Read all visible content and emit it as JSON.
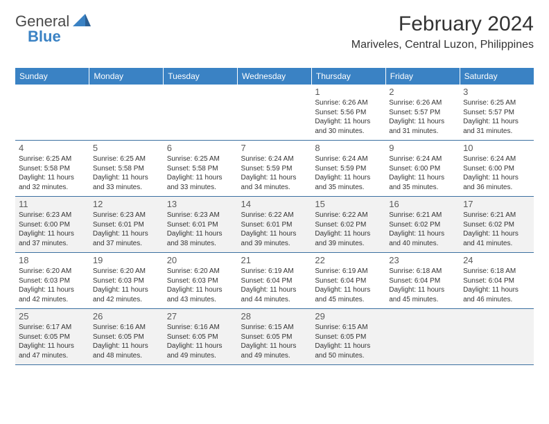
{
  "logo": {
    "word1": "General",
    "word2": "Blue"
  },
  "title": "February 2024",
  "location": "Mariveles, Central Luzon, Philippines",
  "colors": {
    "header_bg": "#3a82c4",
    "header_text": "#ffffff",
    "alt_row_bg": "#f2f2f2",
    "border": "#3a6fa0",
    "text": "#333333"
  },
  "days_of_week": [
    "Sunday",
    "Monday",
    "Tuesday",
    "Wednesday",
    "Thursday",
    "Friday",
    "Saturday"
  ],
  "weeks": [
    [
      null,
      null,
      null,
      null,
      {
        "n": "1",
        "sunrise": "6:26 AM",
        "sunset": "5:56 PM",
        "dl1": "Daylight: 11 hours",
        "dl2": "and 30 minutes."
      },
      {
        "n": "2",
        "sunrise": "6:26 AM",
        "sunset": "5:57 PM",
        "dl1": "Daylight: 11 hours",
        "dl2": "and 31 minutes."
      },
      {
        "n": "3",
        "sunrise": "6:25 AM",
        "sunset": "5:57 PM",
        "dl1": "Daylight: 11 hours",
        "dl2": "and 31 minutes."
      }
    ],
    [
      {
        "n": "4",
        "sunrise": "6:25 AM",
        "sunset": "5:58 PM",
        "dl1": "Daylight: 11 hours",
        "dl2": "and 32 minutes."
      },
      {
        "n": "5",
        "sunrise": "6:25 AM",
        "sunset": "5:58 PM",
        "dl1": "Daylight: 11 hours",
        "dl2": "and 33 minutes."
      },
      {
        "n": "6",
        "sunrise": "6:25 AM",
        "sunset": "5:58 PM",
        "dl1": "Daylight: 11 hours",
        "dl2": "and 33 minutes."
      },
      {
        "n": "7",
        "sunrise": "6:24 AM",
        "sunset": "5:59 PM",
        "dl1": "Daylight: 11 hours",
        "dl2": "and 34 minutes."
      },
      {
        "n": "8",
        "sunrise": "6:24 AM",
        "sunset": "5:59 PM",
        "dl1": "Daylight: 11 hours",
        "dl2": "and 35 minutes."
      },
      {
        "n": "9",
        "sunrise": "6:24 AM",
        "sunset": "6:00 PM",
        "dl1": "Daylight: 11 hours",
        "dl2": "and 35 minutes."
      },
      {
        "n": "10",
        "sunrise": "6:24 AM",
        "sunset": "6:00 PM",
        "dl1": "Daylight: 11 hours",
        "dl2": "and 36 minutes."
      }
    ],
    [
      {
        "n": "11",
        "sunrise": "6:23 AM",
        "sunset": "6:00 PM",
        "dl1": "Daylight: 11 hours",
        "dl2": "and 37 minutes."
      },
      {
        "n": "12",
        "sunrise": "6:23 AM",
        "sunset": "6:01 PM",
        "dl1": "Daylight: 11 hours",
        "dl2": "and 37 minutes."
      },
      {
        "n": "13",
        "sunrise": "6:23 AM",
        "sunset": "6:01 PM",
        "dl1": "Daylight: 11 hours",
        "dl2": "and 38 minutes."
      },
      {
        "n": "14",
        "sunrise": "6:22 AM",
        "sunset": "6:01 PM",
        "dl1": "Daylight: 11 hours",
        "dl2": "and 39 minutes."
      },
      {
        "n": "15",
        "sunrise": "6:22 AM",
        "sunset": "6:02 PM",
        "dl1": "Daylight: 11 hours",
        "dl2": "and 39 minutes."
      },
      {
        "n": "16",
        "sunrise": "6:21 AM",
        "sunset": "6:02 PM",
        "dl1": "Daylight: 11 hours",
        "dl2": "and 40 minutes."
      },
      {
        "n": "17",
        "sunrise": "6:21 AM",
        "sunset": "6:02 PM",
        "dl1": "Daylight: 11 hours",
        "dl2": "and 41 minutes."
      }
    ],
    [
      {
        "n": "18",
        "sunrise": "6:20 AM",
        "sunset": "6:03 PM",
        "dl1": "Daylight: 11 hours",
        "dl2": "and 42 minutes."
      },
      {
        "n": "19",
        "sunrise": "6:20 AM",
        "sunset": "6:03 PM",
        "dl1": "Daylight: 11 hours",
        "dl2": "and 42 minutes."
      },
      {
        "n": "20",
        "sunrise": "6:20 AM",
        "sunset": "6:03 PM",
        "dl1": "Daylight: 11 hours",
        "dl2": "and 43 minutes."
      },
      {
        "n": "21",
        "sunrise": "6:19 AM",
        "sunset": "6:04 PM",
        "dl1": "Daylight: 11 hours",
        "dl2": "and 44 minutes."
      },
      {
        "n": "22",
        "sunrise": "6:19 AM",
        "sunset": "6:04 PM",
        "dl1": "Daylight: 11 hours",
        "dl2": "and 45 minutes."
      },
      {
        "n": "23",
        "sunrise": "6:18 AM",
        "sunset": "6:04 PM",
        "dl1": "Daylight: 11 hours",
        "dl2": "and 45 minutes."
      },
      {
        "n": "24",
        "sunrise": "6:18 AM",
        "sunset": "6:04 PM",
        "dl1": "Daylight: 11 hours",
        "dl2": "and 46 minutes."
      }
    ],
    [
      {
        "n": "25",
        "sunrise": "6:17 AM",
        "sunset": "6:05 PM",
        "dl1": "Daylight: 11 hours",
        "dl2": "and 47 minutes."
      },
      {
        "n": "26",
        "sunrise": "6:16 AM",
        "sunset": "6:05 PM",
        "dl1": "Daylight: 11 hours",
        "dl2": "and 48 minutes."
      },
      {
        "n": "27",
        "sunrise": "6:16 AM",
        "sunset": "6:05 PM",
        "dl1": "Daylight: 11 hours",
        "dl2": "and 49 minutes."
      },
      {
        "n": "28",
        "sunrise": "6:15 AM",
        "sunset": "6:05 PM",
        "dl1": "Daylight: 11 hours",
        "dl2": "and 49 minutes."
      },
      {
        "n": "29",
        "sunrise": "6:15 AM",
        "sunset": "6:05 PM",
        "dl1": "Daylight: 11 hours",
        "dl2": "and 50 minutes."
      },
      null,
      null
    ]
  ],
  "labels": {
    "sunrise": "Sunrise:",
    "sunset": "Sunset:"
  }
}
